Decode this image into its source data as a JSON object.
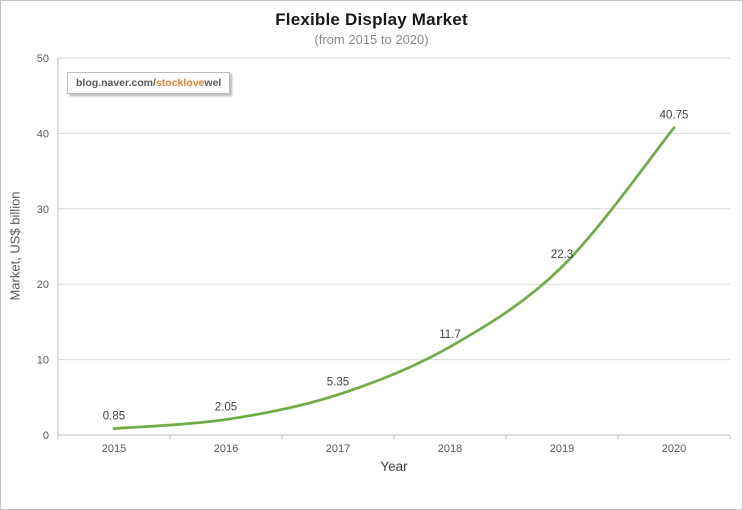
{
  "title": "Flexible Display Market",
  "subtitle": "(from 2015 to 2020)",
  "watermark": {
    "prefix": "blog.naver.com/",
    "highlight": "stocklove",
    "suffix": "wel",
    "highlight_color": "#ED7D31"
  },
  "chart_data": {
    "type": "line",
    "categories": [
      "2015",
      "2016",
      "2017",
      "2018",
      "2019",
      "2020"
    ],
    "values": [
      0.85,
      2.05,
      5.35,
      11.7,
      22.3,
      40.75
    ],
    "title": "Flexible Display Market",
    "subtitle": "(from 2015 to 2020)",
    "xlabel": "Year",
    "ylabel": "Market, US$ billion",
    "ylim": [
      0,
      50
    ],
    "ytick_step": 10,
    "grid": true,
    "legend": false,
    "smooth_line": true,
    "data_labels": true,
    "line_color": "#70AD47"
  },
  "colors": {
    "line": "#70AD47",
    "gridline": "#D9D9D9",
    "axis": "#BFBFBF",
    "tick_text": "#595959",
    "data_label_text": "#404040",
    "title_text": "#1A1A1A",
    "subtitle_text": "#8A8A8A",
    "border": "#C6C6C6"
  }
}
